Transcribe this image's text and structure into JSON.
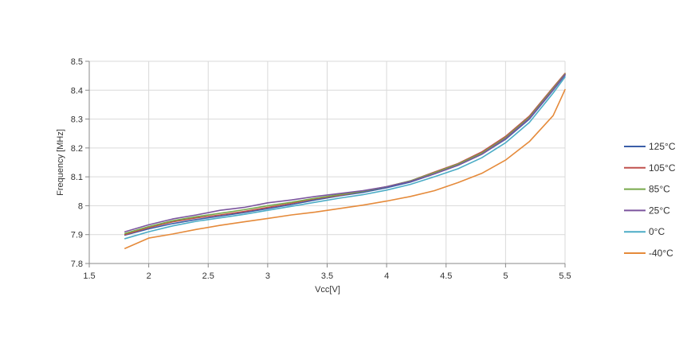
{
  "chart_data": {
    "type": "line",
    "title": "",
    "xlabel": "Vcc[V]",
    "ylabel": "Frequency [MHz]",
    "xlim": [
      1.5,
      5.5
    ],
    "ylim": [
      7.8,
      8.5
    ],
    "xticks": [
      1.5,
      2,
      2.5,
      3,
      3.5,
      4,
      4.5,
      5,
      5.5
    ],
    "xtick_labels": [
      "1.5",
      "2",
      "2.5",
      "3",
      "3.5",
      "4",
      "4.5",
      "5",
      "5.5"
    ],
    "yticks": [
      7.8,
      7.9,
      8.0,
      8.1,
      8.2,
      8.3,
      8.4,
      8.5
    ],
    "ytick_labels": [
      "7.8",
      "7.9",
      "8",
      "8.1",
      "8.2",
      "8.3",
      "8.4",
      "8.5"
    ],
    "grid": true,
    "legend_position": "right",
    "x": [
      1.8,
      2.0,
      2.2,
      2.4,
      2.6,
      2.8,
      3.0,
      3.2,
      3.4,
      3.6,
      3.8,
      4.0,
      4.2,
      4.4,
      4.6,
      4.8,
      5.0,
      5.2,
      5.4,
      5.5
    ],
    "series": [
      {
        "name": "125°C",
        "color": "#3a5ea8",
        "values": [
          7.898,
          7.92,
          7.938,
          7.952,
          7.964,
          7.976,
          7.99,
          8.004,
          8.02,
          8.034,
          8.046,
          8.062,
          8.082,
          8.11,
          8.14,
          8.178,
          8.23,
          8.3,
          8.4,
          8.452
        ]
      },
      {
        "name": "105°C",
        "color": "#c0504d",
        "values": [
          7.9,
          7.924,
          7.944,
          7.958,
          7.968,
          7.98,
          7.994,
          8.008,
          8.024,
          8.036,
          8.05,
          8.066,
          8.086,
          8.116,
          8.146,
          8.186,
          8.24,
          8.31,
          8.41,
          8.458
        ]
      },
      {
        "name": "85°C",
        "color": "#77a94a",
        "values": [
          7.904,
          7.928,
          7.948,
          7.962,
          7.974,
          7.986,
          8.0,
          8.012,
          8.026,
          8.038,
          8.05,
          8.066,
          8.086,
          8.114,
          8.144,
          8.182,
          8.236,
          8.306,
          8.406,
          8.456
        ]
      },
      {
        "name": "25°C",
        "color": "#7b559e",
        "values": [
          7.91,
          7.934,
          7.954,
          7.968,
          7.984,
          7.994,
          8.01,
          8.02,
          8.032,
          8.042,
          8.052,
          8.066,
          8.084,
          8.11,
          8.14,
          8.178,
          8.232,
          8.302,
          8.402,
          8.454
        ]
      },
      {
        "name": "0°C",
        "color": "#4bacc6",
        "values": [
          7.886,
          7.91,
          7.93,
          7.946,
          7.958,
          7.97,
          7.984,
          7.998,
          8.012,
          8.026,
          8.038,
          8.054,
          8.074,
          8.1,
          8.128,
          8.166,
          8.218,
          8.288,
          8.39,
          8.446
        ]
      },
      {
        "name": "-40°C",
        "color": "#e58a3a",
        "values": [
          7.852,
          7.888,
          7.902,
          7.918,
          7.932,
          7.944,
          7.956,
          7.968,
          7.978,
          7.99,
          8.002,
          8.016,
          8.032,
          8.052,
          8.08,
          8.112,
          8.158,
          8.222,
          8.312,
          8.402
        ]
      }
    ]
  }
}
